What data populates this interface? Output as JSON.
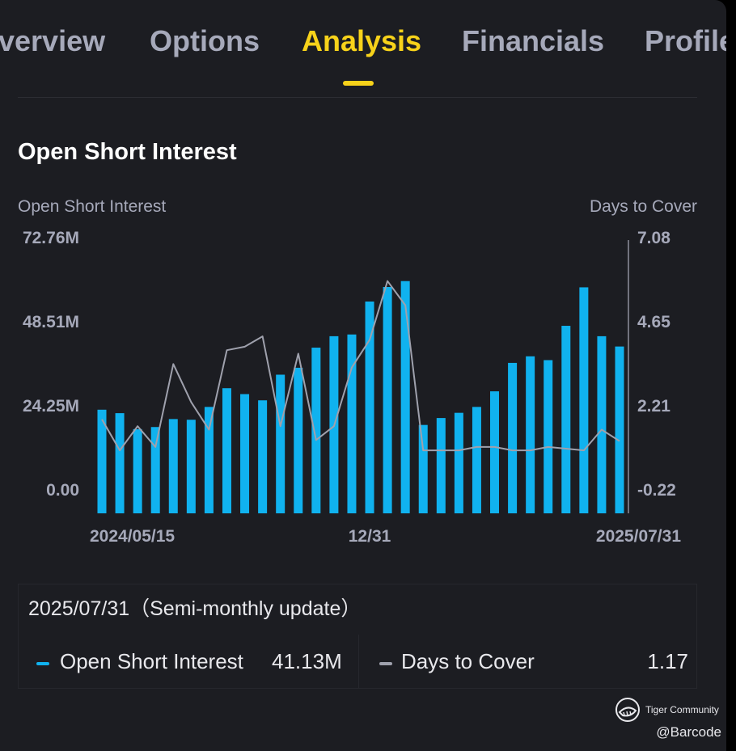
{
  "tabs": [
    {
      "label": "verview",
      "active": false
    },
    {
      "label": "Options",
      "active": false
    },
    {
      "label": "Analysis",
      "active": true
    },
    {
      "label": "Financials",
      "active": false
    },
    {
      "label": "Profile",
      "active": false
    }
  ],
  "section_title": "Open Short Interest",
  "chart_data": {
    "type": "bar",
    "left_axis_title": "Open Short Interest",
    "right_axis_title": "Days to Cover",
    "left_axis_ticks": [
      "72.76M",
      "48.51M",
      "24.25M",
      "0.00"
    ],
    "right_axis_ticks": [
      "7.08",
      "4.65",
      "2.21",
      "-0.22"
    ],
    "left_ylim": [
      0,
      72.76
    ],
    "right_ylim": [
      -0.22,
      7.08
    ],
    "x_tick_labels": [
      {
        "index": 0,
        "label": "2024/05/15"
      },
      {
        "index": 15,
        "label": "12/31"
      },
      {
        "index": 30,
        "label": "2025/07/31"
      }
    ],
    "colors": {
      "bars": "#10b2ef",
      "line": "#9fa1ad"
    },
    "series": [
      {
        "name": "Open Short Interest",
        "unit": "M",
        "type": "bar",
        "axis": "left",
        "values": [
          22.9,
          21.9,
          17.3,
          17.9,
          20.2,
          20.0,
          23.7,
          29.1,
          27.4,
          25.6,
          33.0,
          35.0,
          40.8,
          44.1,
          44.6,
          54.1,
          58.3,
          60.0,
          18.5,
          20.5,
          22.0,
          23.7,
          28.2,
          36.4,
          38.3,
          37.2,
          47.1,
          58.2,
          44.1,
          41.13
        ]
      },
      {
        "name": "Days to Cover",
        "type": "line",
        "axis": "right",
        "values": [
          1.8,
          0.9,
          1.6,
          1.0,
          3.4,
          2.3,
          1.5,
          3.8,
          3.9,
          4.2,
          1.6,
          3.7,
          1.2,
          1.6,
          3.3,
          4.1,
          5.8,
          5.1,
          0.9,
          0.9,
          0.9,
          1.0,
          1.0,
          0.9,
          0.9,
          1.0,
          0.95,
          0.9,
          1.5,
          1.17
        ]
      }
    ]
  },
  "info": {
    "date": "2025/07/31",
    "update": "（Semi-monthly update）",
    "legend": [
      {
        "label": "Open Short Interest",
        "value": "41.13M",
        "color": "#10b2ef"
      },
      {
        "label": "Days to Cover",
        "value": "1.17",
        "color": "#9fa1ad"
      }
    ]
  },
  "watermark": "Tiger Community",
  "credit": "@Barcode"
}
